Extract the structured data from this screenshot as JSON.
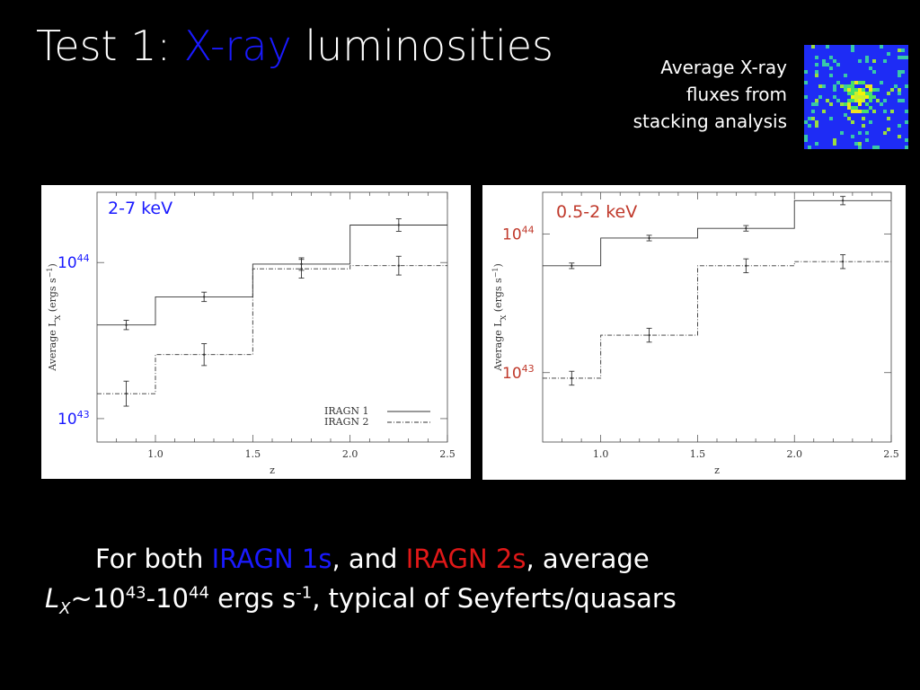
{
  "slide": {
    "title_prefix": "Test 1: ",
    "title_highlight": "X-ray",
    "title_suffix": " luminosities",
    "note_lines": [
      "Average X-ray",
      "fluxes from",
      "stacking analysis"
    ],
    "caption": {
      "l1_a": "For both ",
      "l1_b": "IRAGN 1s",
      "l1_c": ", and ",
      "l1_d": "IRAGN 2s",
      "l1_e": ", average",
      "l2_L": "L",
      "l2_X": "X",
      "l2_a": "~10",
      "l2_e1": "43",
      "l2_b": "-10",
      "l2_e2": "44",
      "l2_c": " ergs s",
      "l2_e3": "-1",
      "l2_d": ", typical of Seyferts/quasars"
    },
    "colors": {
      "highlight_blue": "#1a1aff",
      "highlight_red": "#e01818",
      "background": "#000000"
    }
  },
  "chart_data": [
    {
      "type": "line",
      "band": "2-7 keV",
      "band_color": "#1a1aff",
      "xlabel": "z",
      "ylabel": "Average L",
      "ylabel_sub": "X",
      "ylabel_unit": "(ergs s",
      "ylabel_unit_sup": "−1",
      "ylabel_close": ")",
      "xlim": [
        0.7,
        2.5
      ],
      "ylim_log10": [
        42.85,
        44.45
      ],
      "x_ticks": [
        1.0,
        1.5,
        2.0,
        2.5
      ],
      "x_tick_labels": [
        "1.0",
        "1.5",
        "2.0",
        "2.5"
      ],
      "y_overlay_labels": [
        {
          "base": "10",
          "exp": "44",
          "value": 44
        },
        {
          "base": "10",
          "exp": "43",
          "value": 43
        }
      ],
      "overlay_color": "#1a1aff",
      "bin_edges": [
        0.7,
        1.0,
        1.5,
        2.0,
        2.5
      ],
      "legend": [
        {
          "label": "IRAGN  1",
          "style": "solid"
        },
        {
          "label": "IRAGN  2",
          "style": "dashed"
        }
      ],
      "series": [
        {
          "name": "IRAGN 1",
          "style": "solid",
          "x": [
            0.85,
            1.25,
            1.75,
            2.25
          ],
          "log_lx": [
            43.6,
            43.78,
            43.99,
            44.24
          ],
          "err": [
            0.03,
            0.03,
            0.04,
            0.04
          ]
        },
        {
          "name": "IRAGN 2",
          "style": "dashed",
          "x": [
            0.85,
            1.25,
            1.75,
            2.25
          ],
          "log_lx": [
            43.16,
            43.41,
            43.96,
            43.98
          ],
          "err": [
            0.08,
            0.07,
            0.06,
            0.06
          ]
        }
      ]
    },
    {
      "type": "line",
      "band": "0.5-2 keV",
      "band_color": "#c0392b",
      "xlabel": "z",
      "ylabel": "Average L",
      "ylabel_sub": "X",
      "ylabel_unit": "(ergs s",
      "ylabel_unit_sup": "−1",
      "ylabel_close": ")",
      "xlim": [
        0.7,
        2.5
      ],
      "ylim_log10": [
        42.5,
        44.3
      ],
      "x_ticks": [
        1.0,
        1.5,
        2.0,
        2.5
      ],
      "x_tick_labels": [
        "1.0",
        "1.5",
        "2.0",
        "2.5"
      ],
      "y_overlay_labels": [
        {
          "base": "10",
          "exp": "44",
          "value": 44
        },
        {
          "base": "10",
          "exp": "43",
          "value": 43
        }
      ],
      "overlay_color": "#c0392b",
      "bin_edges": [
        0.7,
        1.0,
        1.5,
        2.0,
        2.5
      ],
      "series": [
        {
          "name": "IRAGN 1",
          "style": "solid",
          "x": [
            0.85,
            1.25,
            1.75,
            2.25
          ],
          "log_lx": [
            43.77,
            43.97,
            44.04,
            44.24
          ],
          "err": [
            0.02,
            0.02,
            0.02,
            0.03
          ]
        },
        {
          "name": "IRAGN 2",
          "style": "dashed",
          "x": [
            0.85,
            1.25,
            1.75,
            2.25
          ],
          "log_lx": [
            42.96,
            43.27,
            43.77,
            43.8
          ],
          "err": [
            0.05,
            0.05,
            0.05,
            0.05
          ]
        }
      ]
    }
  ]
}
